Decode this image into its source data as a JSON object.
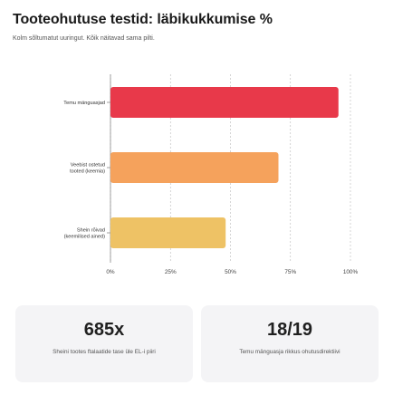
{
  "header": {
    "title": "Tooteohutuse testid: läbikukkumise %",
    "subtitle": "Kolm sõltumatut uuringut. Kõik näitavad sama pilti."
  },
  "chart_data": {
    "type": "bar",
    "orientation": "horizontal",
    "categories": [
      [
        "Temu mänguasjad"
      ],
      [
        "Veebist ostetud",
        "tooted (keemia)"
      ],
      [
        "Shein rõivad",
        "(keemilised ained)"
      ]
    ],
    "values": [
      95,
      70,
      48
    ],
    "colors": [
      "#e8394a",
      "#f5a25c",
      "#eec265"
    ],
    "xlim": [
      0,
      100
    ],
    "xticks": [
      "0%",
      "25%",
      "50%",
      "75%",
      "100%"
    ],
    "grid": true,
    "legend": "none"
  },
  "stats": [
    {
      "value": "685x",
      "label": "Sheini tootes ftalaatide tase üle EL-i piiri"
    },
    {
      "value": "18/19",
      "label": "Temu mänguasja rikkus ohutusdirektiivi"
    }
  ]
}
